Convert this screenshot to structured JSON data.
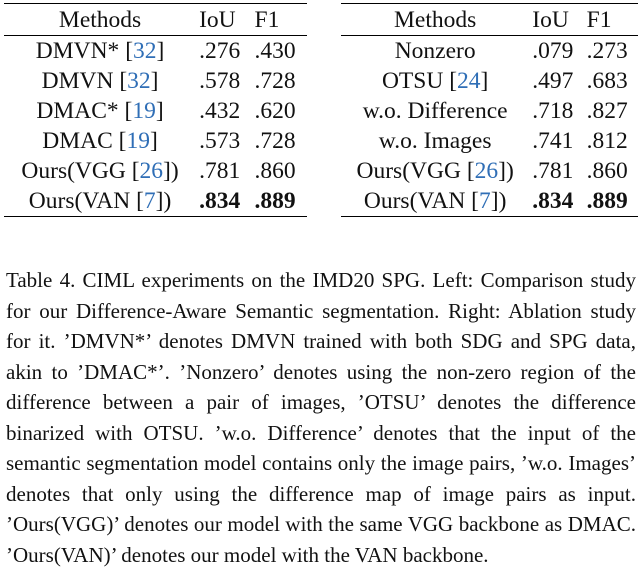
{
  "left_table": {
    "headers": [
      "Methods",
      "IoU",
      "F1"
    ],
    "rows": [
      {
        "method": "DMVN*",
        "ref": "32",
        "iou": ".276",
        "f1": ".430"
      },
      {
        "method": "DMVN",
        "ref": "32",
        "iou": ".578",
        "f1": ".728"
      },
      {
        "method": "DMAC*",
        "ref": "19",
        "iou": ".432",
        "f1": ".620"
      },
      {
        "method": "DMAC",
        "ref": "19",
        "iou": ".573",
        "f1": ".728"
      },
      {
        "method": "Ours(VGG",
        "ref": "26",
        "suffix": ")",
        "iou": ".781",
        "f1": ".860"
      },
      {
        "method": "Ours(VAN",
        "ref": "7",
        "suffix": ")",
        "iou": ".834",
        "f1": ".889"
      }
    ]
  },
  "right_table": {
    "headers": [
      "Methods",
      "IoU",
      "F1"
    ],
    "rows": [
      {
        "method": "Nonzero",
        "iou": ".079",
        "f1": ".273"
      },
      {
        "method": "OTSU",
        "ref": "24",
        "iou": ".497",
        "f1": ".683"
      },
      {
        "method": "w.o. Difference",
        "iou": ".718",
        "f1": ".827"
      },
      {
        "method": "w.o. Images",
        "iou": ".741",
        "f1": ".812"
      },
      {
        "method": "Ours(VGG",
        "ref": "26",
        "suffix": ")",
        "iou": ".781",
        "f1": ".860"
      },
      {
        "method": "Ours(VAN",
        "ref": "7",
        "suffix": ")",
        "iou": ".834",
        "f1": ".889"
      }
    ]
  },
  "caption": "Table 4.  CIML experiments on the IMD20 SPG. Left: Comparison study for our Difference-Aware Semantic segmentation. Right: Ablation study for it. ’DMVN*’ denotes DMVN trained with both SDG and SPG data, akin to ’DMAC*’. ’Nonzero’ denotes using the non-zero region of the difference between a pair of images, ’OTSU’ denotes the difference binarized with OTSU. ’w.o. Difference’ denotes that the input of the semantic segmentation model contains only the image pairs, ’w.o. Images’ denotes that only using the difference map of image pairs as input. ’Ours(VGG)’ denotes our model with the same VGG backbone as DMAC. ’Ours(VAN)’ denotes our model with the VAN backbone.",
  "colors": {
    "citation": "#2f6eb6",
    "text": "#111111"
  }
}
